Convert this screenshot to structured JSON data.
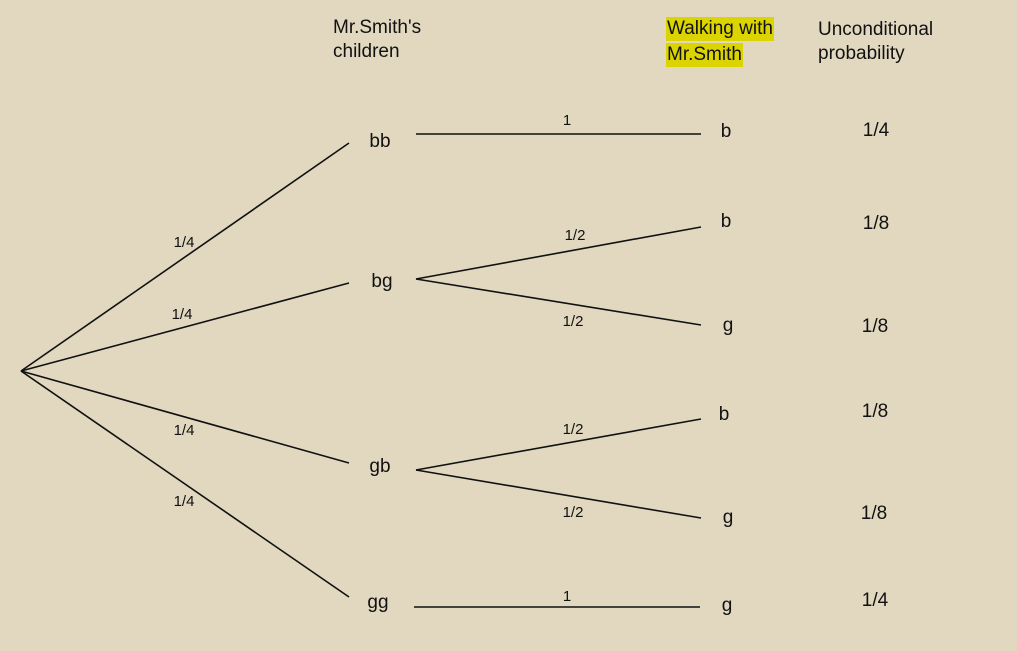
{
  "headers": {
    "children": [
      "Mr.Smith's",
      "children"
    ],
    "walking": [
      "Walking with",
      "Mr.Smith"
    ],
    "unconditional": [
      "Unconditional",
      "probability"
    ]
  },
  "first_level": [
    {
      "id": "bb",
      "label": "bb",
      "branch_prob": "1/4"
    },
    {
      "id": "bg",
      "label": "bg",
      "branch_prob": "1/4"
    },
    {
      "id": "gb",
      "label": "gb",
      "branch_prob": "1/4"
    },
    {
      "id": "gg",
      "label": "gg",
      "branch_prob": "1/4"
    }
  ],
  "second_level": [
    {
      "parent": "bb",
      "label": "b",
      "branch_prob": "1",
      "unconditional": "1/4"
    },
    {
      "parent": "bg",
      "label": "b",
      "branch_prob": "1/2",
      "unconditional": "1/8"
    },
    {
      "parent": "bg",
      "label": "g",
      "branch_prob": "1/2",
      "unconditional": "1/8"
    },
    {
      "parent": "gb",
      "label": "b",
      "branch_prob": "1/2",
      "unconditional": "1/8"
    },
    {
      "parent": "gb",
      "label": "g",
      "branch_prob": "1/2",
      "unconditional": "1/8"
    },
    {
      "parent": "gg",
      "label": "g",
      "branch_prob": "1",
      "unconditional": "1/4"
    }
  ],
  "colors": {
    "background": "#e1d8bf",
    "highlight": "#dcd400",
    "line": "#111111"
  }
}
